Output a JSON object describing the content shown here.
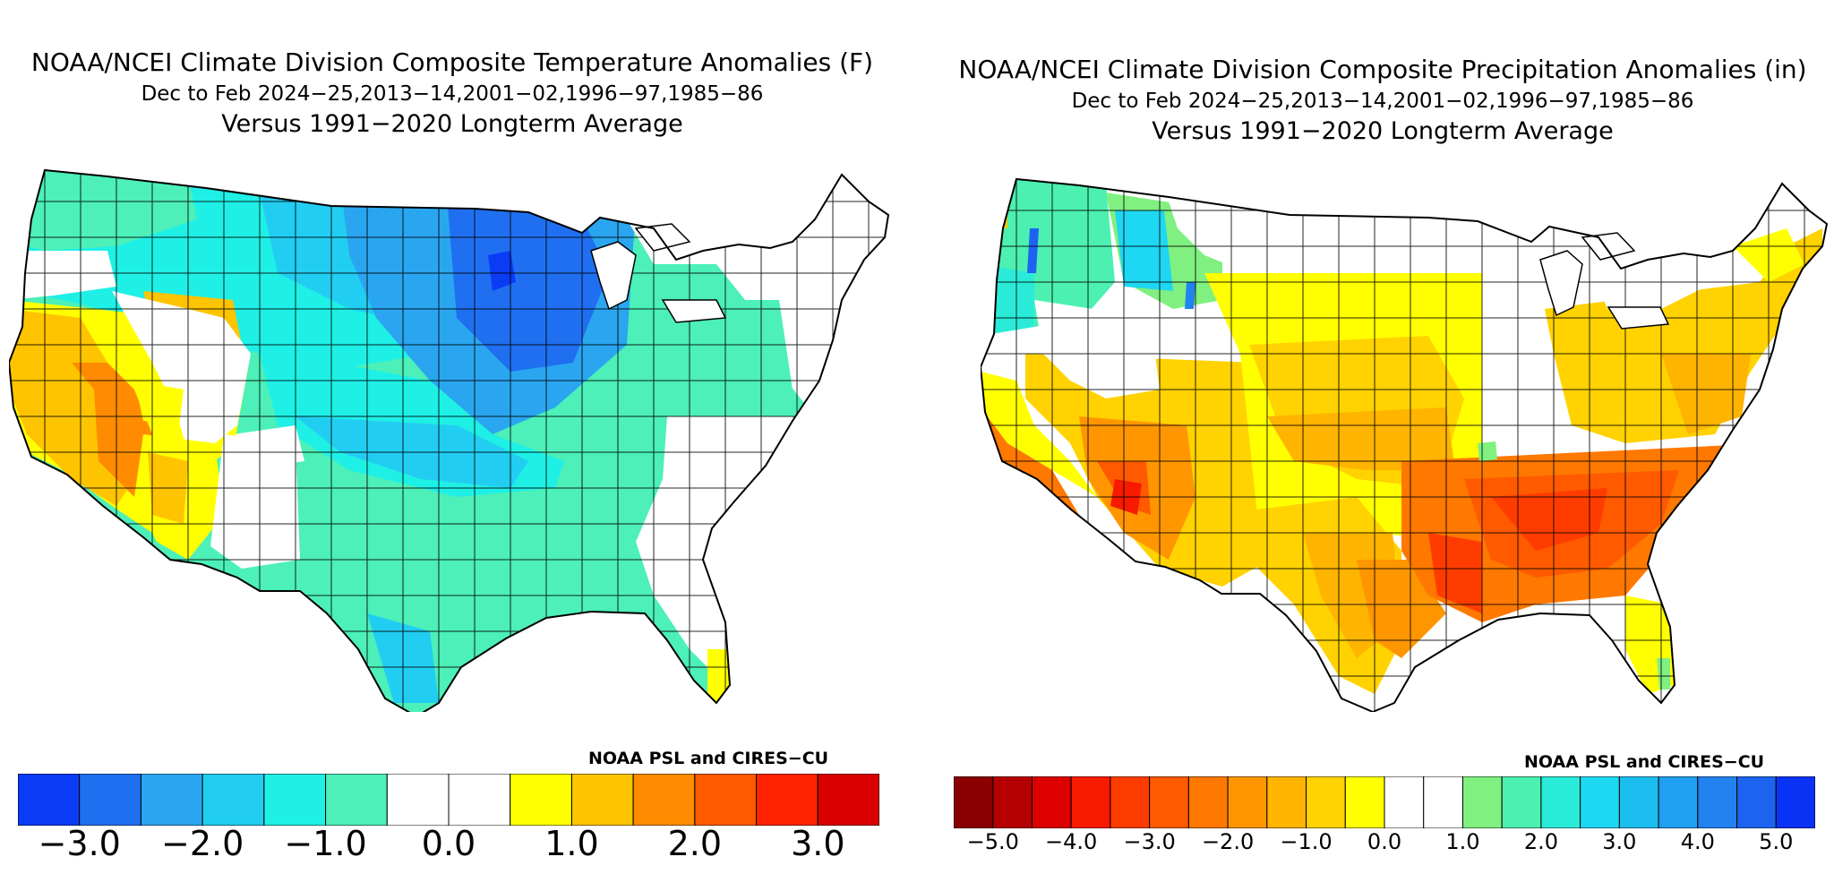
{
  "temperature_panel": {
    "title": "NOAA/NCEI Climate Division Composite Temperature Anomalies (F)",
    "period": "Dec to Feb  2024−25,2013−14,2001−02,1996−97,1985−86",
    "baseline": "Versus 1991−2020 Longterm Average",
    "credit": "NOAA PSL and CIRES−CU",
    "legend_colors": [
      "#0a3cf5",
      "#1f6ff0",
      "#2aa6f0",
      "#22cdf2",
      "#1ef0e6",
      "#4cf0b8",
      "#ffffff",
      "#ffffff",
      "#ffff00",
      "#ffc400",
      "#ff8c00",
      "#ff5a00",
      "#ff2200",
      "#d80000"
    ],
    "legend_ticks": [
      "−3.0",
      "−2.0",
      "−1.0",
      "0.0",
      "1.0",
      "2.0",
      "3.0"
    ]
  },
  "precipitation_panel": {
    "title": "NOAA/NCEI Climate Division Composite Precipitation Anomalies (in)",
    "period": "Dec to Feb  2024−25,2013−14,2001−02,1996−97,1985−86",
    "baseline": "Versus 1991−2020 Longterm Average",
    "credit": "NOAA PSL and CIRES−CU",
    "legend_colors": [
      "#8a0000",
      "#b40000",
      "#dc0000",
      "#f81a00",
      "#ff3c00",
      "#ff5a00",
      "#ff7800",
      "#ff9600",
      "#ffb400",
      "#ffd200",
      "#ffff00",
      "#ffffff",
      "#ffffff",
      "#80f080",
      "#4cf0b0",
      "#2aebd8",
      "#1ed7f2",
      "#1cbef0",
      "#20a0f0",
      "#2282f0",
      "#1c64f0",
      "#0a32f5"
    ],
    "legend_ticks": [
      "−5.0",
      "−4.0",
      "−3.0",
      "−2.0",
      "−1.0",
      "0.0",
      "1.0",
      "2.0",
      "3.0",
      "4.0",
      "5.0"
    ]
  }
}
